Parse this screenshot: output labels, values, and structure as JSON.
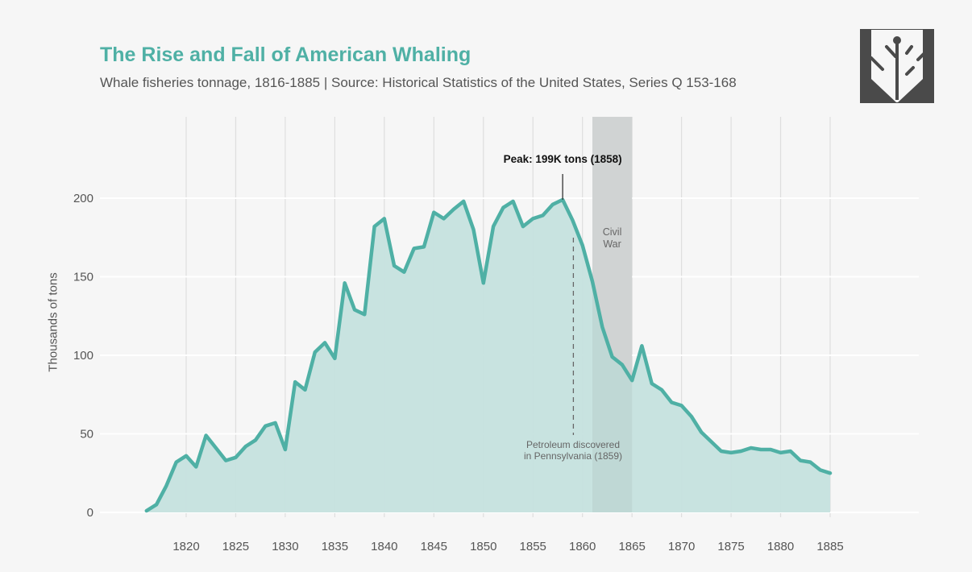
{
  "header": {
    "title": "The Rise and Fall of American Whaling",
    "subtitle": "Whale fisheries tonnage, 1816-1885 | Source: Historical Statistics of the United States, Series Q 153-168",
    "logo_icon": "tree-in-shield-logo"
  },
  "colors": {
    "accent": "#4fb0a5",
    "area_fill": "#c5e1de",
    "band": "#dcdcdc",
    "text": "#555555"
  },
  "chart_data": {
    "type": "area",
    "title": "The Rise and Fall of American Whaling",
    "subtitle": "Whale fisheries tonnage, 1816-1885 | Source: Historical Statistics of the United States, Series Q 153-168",
    "xlabel": "",
    "ylabel": "Thousands of tons",
    "xlim": [
      1816,
      1885
    ],
    "ylim": [
      0,
      200
    ],
    "xticks": [
      1820,
      1825,
      1830,
      1835,
      1840,
      1845,
      1850,
      1855,
      1860,
      1865,
      1870,
      1875,
      1880,
      1885
    ],
    "yticks": [
      0,
      50,
      100,
      150,
      200
    ],
    "grid": true,
    "x": [
      1816,
      1817,
      1818,
      1819,
      1820,
      1821,
      1822,
      1823,
      1824,
      1825,
      1826,
      1827,
      1828,
      1829,
      1830,
      1831,
      1832,
      1833,
      1834,
      1835,
      1836,
      1837,
      1838,
      1839,
      1840,
      1841,
      1842,
      1843,
      1844,
      1845,
      1846,
      1847,
      1848,
      1849,
      1850,
      1851,
      1852,
      1853,
      1854,
      1855,
      1856,
      1857,
      1858,
      1859,
      1860,
      1861,
      1862,
      1863,
      1864,
      1865,
      1866,
      1867,
      1868,
      1869,
      1870,
      1871,
      1872,
      1873,
      1874,
      1875,
      1876,
      1877,
      1878,
      1879,
      1880,
      1881,
      1882,
      1883,
      1884,
      1885
    ],
    "series": [
      {
        "name": "Whale fisheries tonnage (thousands of tons)",
        "values": [
          1,
          5,
          17,
          32,
          36,
          29,
          49,
          41,
          33,
          35,
          42,
          46,
          55,
          57,
          40,
          83,
          78,
          102,
          108,
          98,
          146,
          129,
          126,
          182,
          187,
          157,
          153,
          168,
          169,
          191,
          187,
          193,
          198,
          180,
          146,
          182,
          194,
          198,
          182,
          187,
          189,
          196,
          199,
          186,
          170,
          147,
          118,
          99,
          94,
          84,
          106,
          82,
          78,
          70,
          68,
          61,
          51,
          45,
          39,
          38,
          39,
          41,
          40,
          40,
          38,
          39,
          33,
          32,
          27,
          25
        ]
      }
    ],
    "annotations": [
      {
        "type": "peak",
        "text": "Peak: 199K tons (1858)",
        "x": 1858,
        "y": 199
      },
      {
        "type": "band",
        "text": [
          "Civil",
          "War"
        ],
        "x_start": 1861,
        "x_end": 1865
      },
      {
        "type": "vline-dashed",
        "text": [
          "Petroleum discovered",
          "in Pennsylvania (1859)"
        ],
        "x": 1859
      }
    ]
  }
}
